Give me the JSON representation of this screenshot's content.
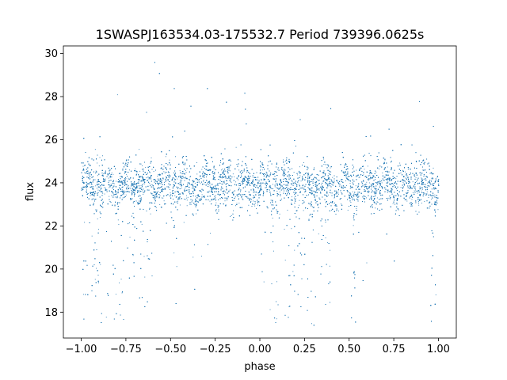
{
  "chart_data": {
    "type": "scatter",
    "title": "1SWASPJ163534.03-175532.7 Period 739396.0625s",
    "xlabel": "phase",
    "ylabel": "flux",
    "xlim": [
      -1.1,
      1.1
    ],
    "ylim": [
      16.8,
      30.35
    ],
    "xticks": [
      -1.0,
      -0.75,
      -0.5,
      -0.25,
      0.0,
      0.25,
      0.5,
      0.75,
      1.0
    ],
    "xtick_labels": [
      "−1.00",
      "−0.75",
      "−0.50",
      "−0.25",
      "0.00",
      "0.25",
      "0.50",
      "0.75",
      "1.00"
    ],
    "yticks": [
      18,
      20,
      22,
      24,
      26,
      28,
      30
    ],
    "ytick_labels": [
      "18",
      "20",
      "22",
      "24",
      "26",
      "28",
      "30"
    ],
    "grid": false,
    "marker_color": "#1f77b4",
    "series": [
      {
        "name": "",
        "band_center": 23.9,
        "band_halfwidth": 1.1,
        "band_min": 22.4,
        "band_max": 25.3,
        "dip_min": 17.4,
        "outlier_max": 29.7,
        "x_range": [
          -1.0,
          1.0
        ],
        "dip_phases": [
          -0.98,
          -0.93,
          -0.9,
          -0.85,
          -0.82,
          -0.78,
          -0.74,
          -0.7,
          -0.66,
          -0.62,
          -0.48,
          0.02,
          0.07,
          0.1,
          0.15,
          0.18,
          0.22,
          0.26,
          0.3,
          0.34,
          0.38,
          0.52,
          0.97
        ],
        "point_count": 14000
      }
    ]
  }
}
